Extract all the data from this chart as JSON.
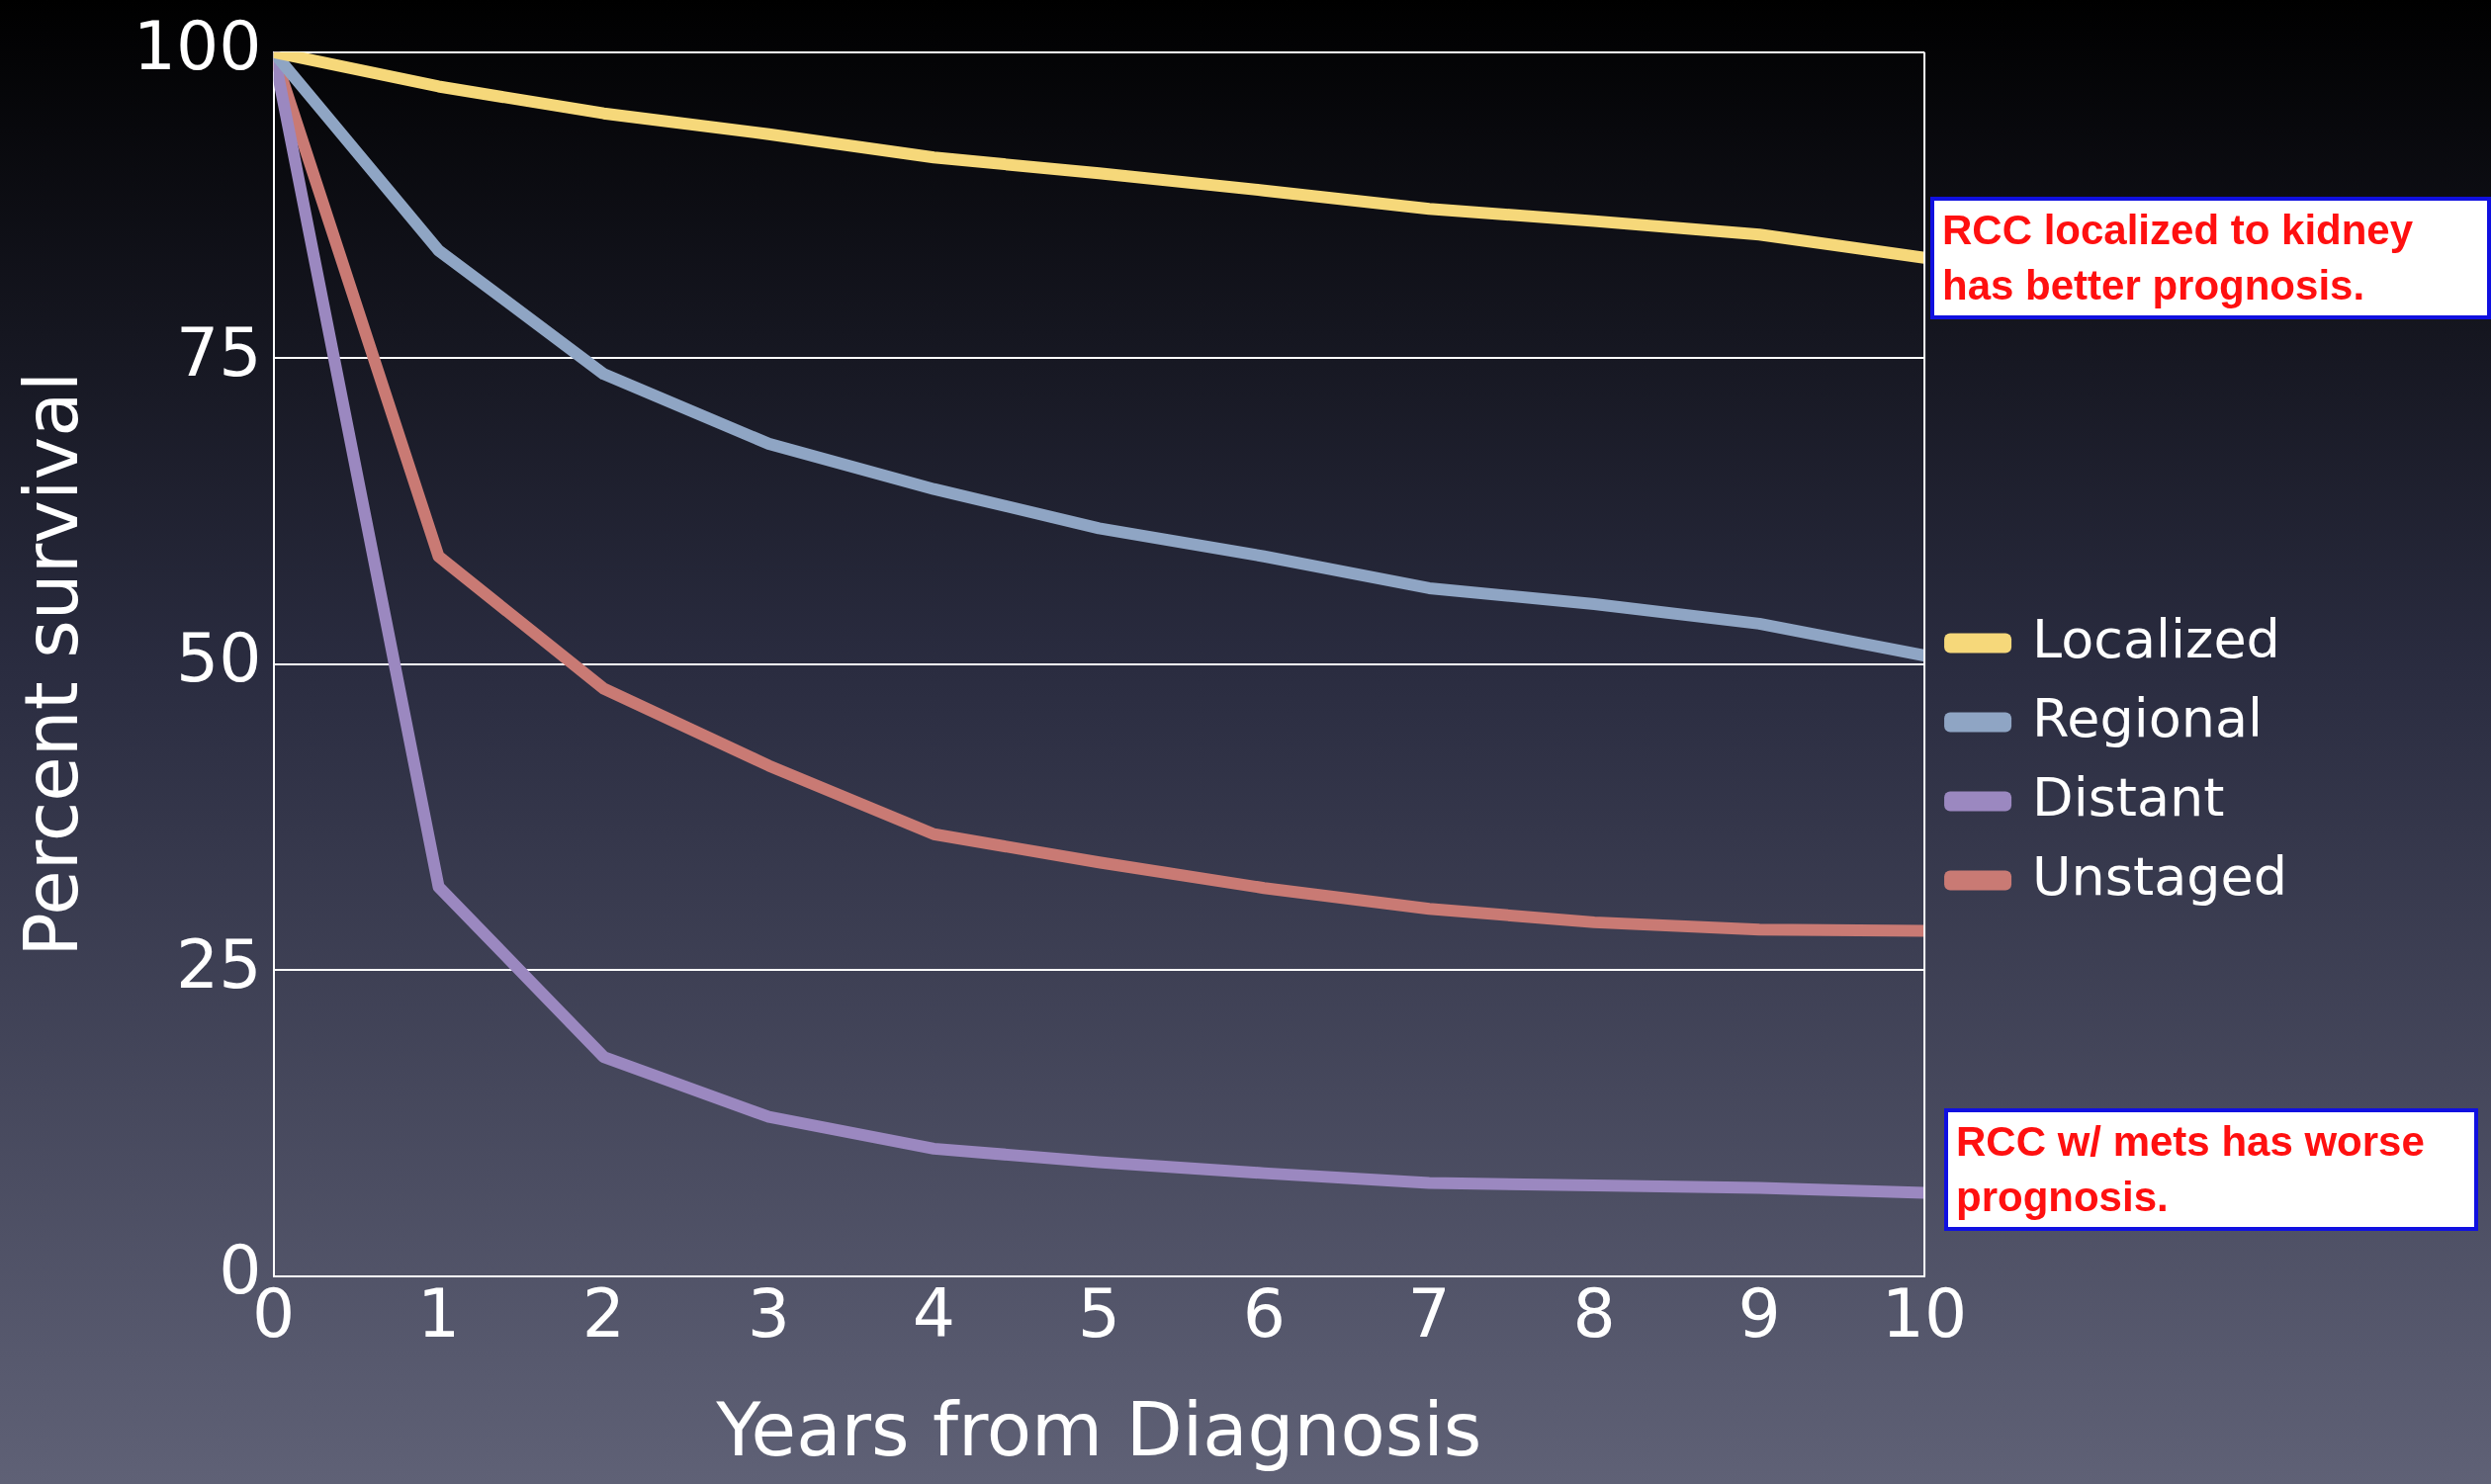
{
  "chart_data": {
    "type": "line",
    "xlabel": "Years from Diagnosis",
    "ylabel": "Percent survival",
    "x": [
      0,
      1,
      2,
      3,
      4,
      5,
      6,
      7,
      8,
      9,
      10
    ],
    "series": [
      {
        "name": "Localized",
        "color": "#f6d87a",
        "values": [
          100,
          97.2,
          95.0,
          93.3,
          91.4,
          90.1,
          88.7,
          87.2,
          86.2,
          85.1,
          83.2
        ]
      },
      {
        "name": "Regional",
        "color": "#8fa5c4",
        "values": [
          100,
          83.8,
          73.7,
          68.0,
          64.3,
          61.1,
          58.8,
          56.2,
          54.9,
          53.3,
          50.7
        ]
      },
      {
        "name": "Distant",
        "color": "#9b88c0",
        "values": [
          100,
          31.8,
          17.9,
          13.0,
          10.4,
          9.3,
          8.4,
          7.6,
          7.4,
          7.2,
          6.8
        ]
      },
      {
        "name": "Unstaged",
        "color": "#c97a74",
        "values": [
          100,
          58.8,
          48.0,
          41.7,
          36.1,
          33.8,
          31.7,
          30.0,
          28.9,
          28.3,
          28.2
        ]
      }
    ],
    "xlim": [
      0,
      10
    ],
    "xticks": [
      0,
      1,
      2,
      3,
      4,
      5,
      6,
      7,
      8,
      9,
      10
    ],
    "ylim": [
      0,
      100
    ],
    "yticks": [
      0,
      25,
      50,
      75,
      100
    ],
    "grid": "y",
    "legend": "right",
    "marker": "none",
    "line_style": "solid",
    "annotations": [
      "RCC localized to kidney has better prognosis.",
      "RCC w/ mets has worse prognosis."
    ]
  }
}
